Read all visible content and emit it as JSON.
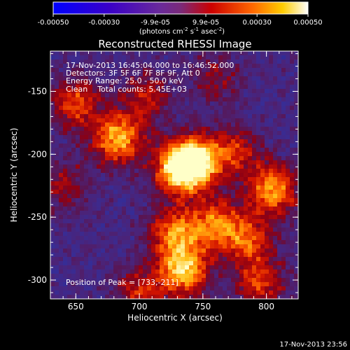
{
  "colorbar": {
    "ticks": [
      "-0.00050",
      "-0.00030",
      "-9.9e-05",
      "9.9e-05",
      "0.00030",
      "0.00050"
    ],
    "units": "(photons cm",
    "units_exp1": "-2",
    "units_mid": " s",
    "units_exp2": "-1",
    "units_mid2": " asec",
    "units_exp3": "-2",
    "units_close": ")"
  },
  "title": "Reconstructed RHESSI Image",
  "annotations": {
    "time": "17-Nov-2013 16:45:04.000 to 16:46:52.000",
    "detectors": "Detectors: 3F 5F 6F 7F 8F 9F, Att 0",
    "energy": "Energy Range: 25.0 - 50.0 keV",
    "clean": "Clean    Total counts: 5.45E+03",
    "peak": "Position of Peak = [733,-211]"
  },
  "axes": {
    "xlabel": "Heliocentric X (arcsec)",
    "ylabel": "Heliocentric Y (arcsec)",
    "xticks": [
      "650",
      "700",
      "750",
      "800"
    ],
    "yticks": [
      "-150",
      "-200",
      "-250",
      "-300"
    ]
  },
  "footer_timestamp": "17-Nov-2013 23:56",
  "chart_data": {
    "type": "heatmap",
    "title": "Reconstructed RHESSI Image",
    "xlabel": "Heliocentric X (arcsec)",
    "ylabel": "Heliocentric Y (arcsec)",
    "xlim": [
      630,
      825
    ],
    "ylim": [
      -315,
      -118
    ],
    "colorscale_range": [
      -0.0005,
      0.0005
    ],
    "peak": {
      "x": 733,
      "y": -211
    },
    "sources": [
      {
        "x": 733,
        "y": -211,
        "strength": 1.0
      },
      {
        "x": 745,
        "y": -205,
        "strength": 0.75
      },
      {
        "x": 683,
        "y": -188,
        "strength": 0.8
      },
      {
        "x": 735,
        "y": -292,
        "strength": 0.85
      },
      {
        "x": 728,
        "y": -262,
        "strength": 0.65
      },
      {
        "x": 760,
        "y": -255,
        "strength": 0.6
      },
      {
        "x": 805,
        "y": -228,
        "strength": 0.75
      },
      {
        "x": 785,
        "y": -268,
        "strength": 0.55
      },
      {
        "x": 650,
        "y": -160,
        "strength": 0.55
      },
      {
        "x": 795,
        "y": -302,
        "strength": 0.5
      },
      {
        "x": 775,
        "y": -198,
        "strength": 0.45
      },
      {
        "x": 705,
        "y": -155,
        "strength": 0.4
      },
      {
        "x": 700,
        "y": -310,
        "strength": 0.45
      },
      {
        "x": 640,
        "y": -225,
        "strength": 0.35
      },
      {
        "x": 760,
        "y": -140,
        "strength": 0.3
      }
    ]
  }
}
